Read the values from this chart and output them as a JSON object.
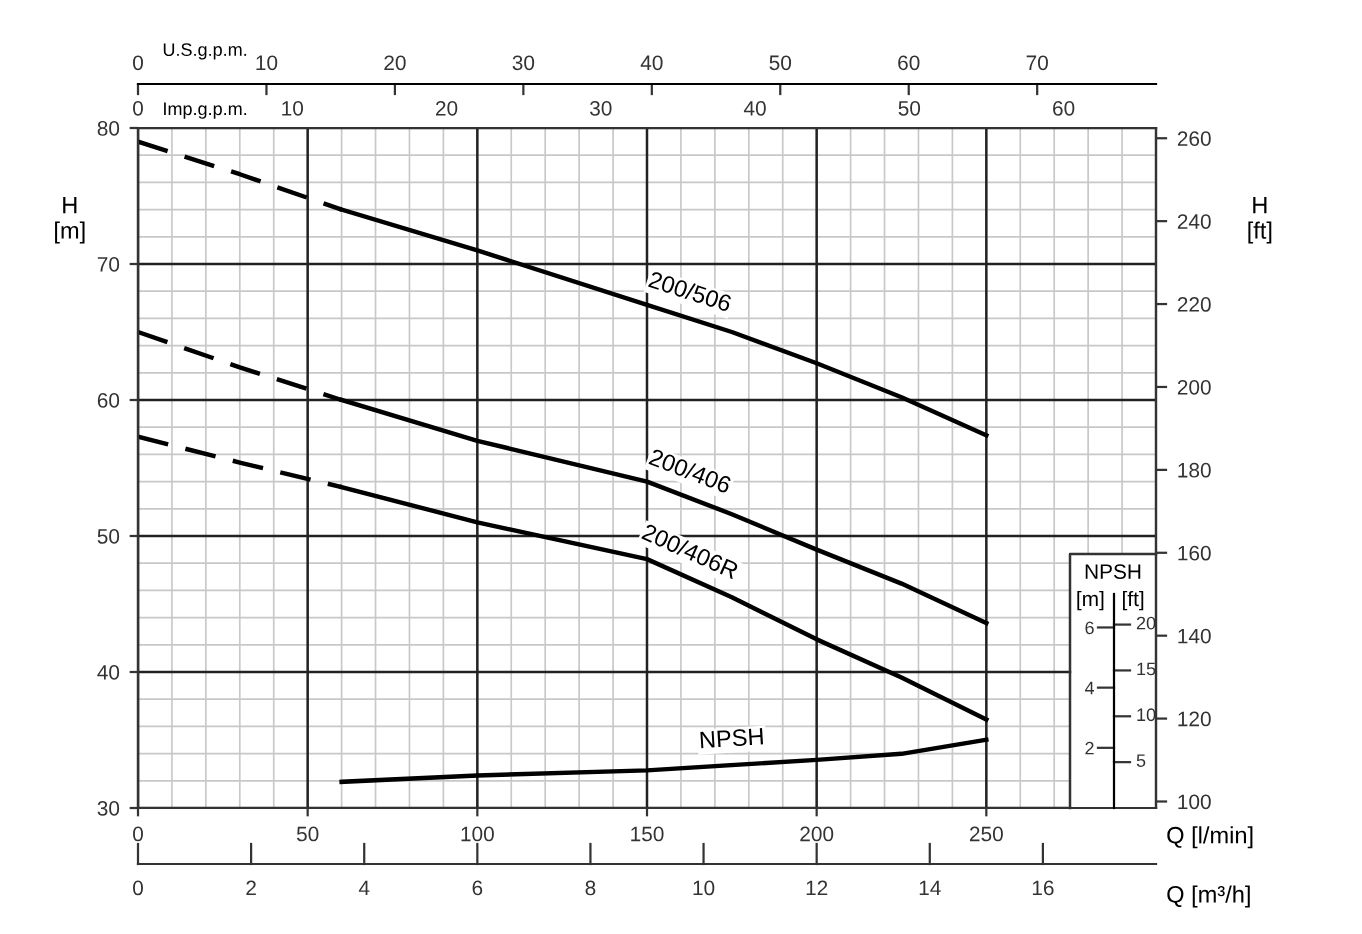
{
  "chart_data": {
    "type": "line",
    "xlabel": "Q [l/min]",
    "ylabel": "H\n[m]",
    "y2label": "H\n[ft]",
    "y3label": "[m]",
    "x2label": "U.S.g.p.m.",
    "annotations": [
      "NPSH",
      "Imp.g.p.m.",
      "0",
      "10",
      "20",
      "30",
      "40",
      "50",
      "60",
      "Q [m³/h]",
      "0",
      "2",
      "4",
      "6",
      "8",
      "10",
      "12",
      "14",
      "16",
      "[ft]",
      "5",
      "10",
      "15",
      "20"
    ],
    "xlim": [
      0,
      300
    ],
    "xticks": [
      0,
      50,
      100,
      150,
      200,
      250
    ],
    "x2lim": [
      0,
      79.25
    ],
    "x2ticks": [
      0,
      10,
      20,
      30,
      40,
      50,
      60,
      70
    ],
    "ylim": [
      30,
      80
    ],
    "yticks": [
      30,
      40,
      50,
      60,
      70,
      80
    ],
    "y2lim": [
      98.43,
      262.47
    ],
    "y2ticks": [
      100,
      120,
      140,
      160,
      180,
      200,
      220,
      240,
      260
    ],
    "y3lim": [
      0,
      22.6
    ],
    "y3ticks": [
      2,
      4,
      6
    ],
    "grid": true,
    "marker": "none",
    "series": [
      {
        "color": "#000000",
        "line_style": "dashed",
        "x": [
          0,
          30,
          60
        ],
        "values": [
          79,
          76.6,
          74
        ]
      },
      {
        "name": "200/506",
        "color": "#000000",
        "line_style": "solid",
        "x": [
          60,
          100,
          150,
          175,
          200,
          225,
          250
        ],
        "values": [
          74,
          71,
          67,
          65,
          62.7,
          60.2,
          57.4
        ]
      },
      {
        "color": "#000000",
        "line_style": "dashed",
        "x": [
          0,
          30,
          60
        ],
        "values": [
          65,
          62.4,
          60
        ]
      },
      {
        "name": "200/406",
        "color": "#000000",
        "line_style": "solid",
        "x": [
          60,
          100,
          150,
          175,
          200,
          225,
          250
        ],
        "values": [
          60,
          57,
          54,
          51.6,
          49,
          46.5,
          43.6
        ]
      },
      {
        "color": "#000000",
        "line_style": "dashed",
        "x": [
          0,
          30,
          60
        ],
        "values": [
          57.3,
          55.4,
          53.6
        ]
      },
      {
        "name": "200/406R",
        "color": "#000000",
        "line_style": "solid",
        "x": [
          60,
          100,
          150,
          175,
          200,
          225,
          250
        ],
        "values": [
          53.6,
          51,
          48.3,
          45.5,
          42.4,
          39.6,
          36.5
        ]
      },
      {
        "name": "NPSH",
        "color": "#000000",
        "line_style": "solid",
        "axis": "y3",
        "x": [
          60,
          100,
          150,
          200,
          225,
          250
        ],
        "values": [
          0.87,
          1.08,
          1.25,
          1.6,
          1.8,
          2.27
        ]
      }
    ]
  }
}
